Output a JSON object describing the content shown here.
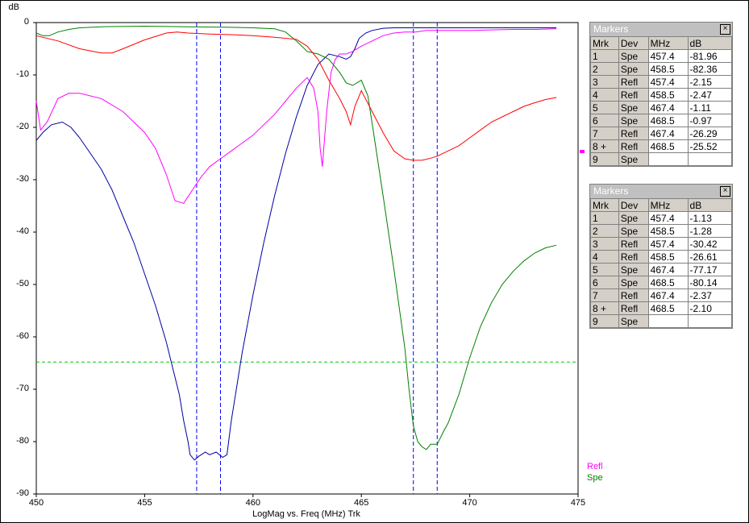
{
  "chart_data": {
    "type": "line",
    "ylabel": "dB",
    "xlabel": "LogMag vs. Freq (MHz)  Trk",
    "xlim": [
      450,
      475
    ],
    "ylim": [
      -90,
      0
    ],
    "xticks": [
      "450",
      "455",
      "460",
      "465",
      "470",
      "475"
    ],
    "yticks": [
      "0",
      "-10",
      "-20",
      "-30",
      "-40",
      "-50",
      "-60",
      "-70",
      "-80",
      "-90"
    ],
    "reference_line_db": -64.8,
    "marker_freqs": [
      457.4,
      458.5,
      467.4,
      468.5
    ],
    "legend": [
      {
        "name": "Refl",
        "color": "#ff00ff"
      },
      {
        "name": "Spe",
        "color": "#008000"
      }
    ],
    "series": [
      {
        "color": "#0000a0",
        "x": [
          450,
          450.3,
          450.7,
          451.2,
          451.6,
          452,
          452.5,
          453,
          453.5,
          454,
          454.5,
          455,
          455.5,
          456,
          456.3,
          456.6,
          456.8,
          457,
          457.1,
          457.3,
          457.5,
          457.8,
          458,
          458.3,
          458.6,
          458.8,
          459,
          459.5,
          460,
          460.5,
          461,
          461.5,
          462,
          462.5,
          463,
          463.5,
          464,
          464.3,
          464.5,
          464.7,
          464.9,
          465.2,
          465.5,
          466,
          466.5,
          467,
          467.5,
          468,
          469,
          470,
          471,
          472,
          473,
          474
        ],
        "y": [
          -22.5,
          -21,
          -19.5,
          -19,
          -20,
          -22,
          -25,
          -28,
          -32,
          -37,
          -42,
          -48,
          -54,
          -61,
          -66,
          -71,
          -76,
          -80,
          -82.5,
          -83.5,
          -82.8,
          -82,
          -82.5,
          -82,
          -83,
          -82.5,
          -76,
          -63,
          -52,
          -42,
          -33,
          -25,
          -18,
          -12,
          -8,
          -6,
          -6.5,
          -7,
          -6.5,
          -5,
          -3,
          -2,
          -1.5,
          -1.1,
          -1,
          -1,
          -1,
          -1,
          -1,
          -1,
          -1,
          -1,
          -1,
          -1
        ]
      },
      {
        "color": "#ff00ff",
        "x": [
          450,
          450.2,
          450.5,
          451,
          451.5,
          452,
          453,
          454,
          455,
          455.5,
          456,
          456.4,
          456.8,
          457.2,
          457.6,
          458,
          458.5,
          459,
          459.5,
          460,
          460.5,
          461,
          461.5,
          462,
          462.5,
          462.8,
          463,
          463.1,
          463.2,
          463.4,
          463.6,
          463.8,
          464,
          464.3,
          464.6,
          465,
          465.5,
          466,
          466.5,
          467,
          467.5,
          468,
          468.5,
          469,
          470,
          471,
          472,
          473,
          474
        ],
        "y": [
          -15,
          -20.5,
          -19,
          -14.5,
          -13.5,
          -13.5,
          -14.5,
          -17,
          -21,
          -24,
          -29,
          -34,
          -34.5,
          -32,
          -29.5,
          -27.5,
          -26,
          -24.5,
          -23,
          -21.5,
          -19.5,
          -17.5,
          -15,
          -12.5,
          -10.5,
          -12.5,
          -17,
          -24,
          -27.5,
          -17,
          -9.5,
          -7,
          -6,
          -6,
          -5.5,
          -4.5,
          -3.5,
          -2.5,
          -2,
          -1.8,
          -1.8,
          -1.5,
          -1.5,
          -1.5,
          -1.5,
          -1.4,
          -1.3,
          -1.3,
          -1.2
        ]
      },
      {
        "color": "#008000",
        "x": [
          450,
          450.3,
          450.6,
          451,
          451.5,
          452,
          453,
          455,
          457,
          459,
          460,
          461,
          461.5,
          462,
          462.5,
          463,
          463.5,
          464,
          464.3,
          464.6,
          464.8,
          465,
          465.3,
          465.6,
          466,
          466.5,
          467,
          467.2,
          467.4,
          467.6,
          467.8,
          468,
          468.2,
          468.5,
          468.8,
          469,
          469.5,
          470,
          470.5,
          471,
          471.5,
          472,
          472.5,
          473,
          473.5,
          474
        ],
        "y": [
          -2,
          -2.5,
          -2.5,
          -1.8,
          -1.3,
          -1,
          -0.8,
          -0.7,
          -0.8,
          -0.9,
          -1,
          -1.2,
          -1.8,
          -3.5,
          -5.5,
          -6,
          -7,
          -9.5,
          -11.5,
          -12,
          -11.5,
          -11,
          -14,
          -22,
          -33,
          -47,
          -62,
          -70,
          -77,
          -80,
          -81,
          -81.5,
          -80.5,
          -80.5,
          -78,
          -76.5,
          -71,
          -64,
          -58,
          -53.5,
          -50,
          -47.5,
          -45.5,
          -44,
          -43,
          -42.5
        ]
      },
      {
        "color": "#ff0000",
        "x": [
          450,
          451,
          452,
          453,
          453.5,
          454,
          455,
          456,
          456.5,
          457,
          458,
          459,
          460,
          461,
          462,
          462.5,
          463,
          463.5,
          464,
          464.3,
          464.5,
          464.7,
          465,
          465.5,
          466,
          466.5,
          467,
          467.4,
          467.8,
          468.2,
          468.5,
          469,
          469.5,
          470,
          470.5,
          471,
          471.5,
          472,
          472.5,
          473,
          473.5,
          474
        ],
        "y": [
          -2.5,
          -3.5,
          -5,
          -5.8,
          -5.8,
          -5,
          -3.3,
          -2,
          -1.8,
          -2,
          -2.2,
          -2.3,
          -2.5,
          -2.8,
          -3.2,
          -4.5,
          -7,
          -11,
          -14.5,
          -17,
          -19.5,
          -16,
          -13,
          -17,
          -21,
          -24.5,
          -26,
          -26.3,
          -26.3,
          -25.9,
          -25.5,
          -24.5,
          -23.5,
          -22,
          -20.5,
          -19,
          -18,
          -17,
          -16,
          -15.3,
          -14.7,
          -14.3
        ]
      }
    ]
  },
  "markers_top": {
    "title": "Markers",
    "close": "×",
    "headers": [
      "Mrk",
      "Dev",
      "MHz",
      "dB"
    ],
    "rows": [
      [
        "1",
        "Spe",
        "457.4",
        "-81.96"
      ],
      [
        "2",
        "Spe",
        "458.5",
        "-82.36"
      ],
      [
        "3",
        "Refl",
        "457.4",
        "-2.15"
      ],
      [
        "4",
        "Refl",
        "458.5",
        "-2.47"
      ],
      [
        "5",
        "Spe",
        "467.4",
        "-1.11"
      ],
      [
        "6",
        "Spe",
        "468.5",
        "-0.97"
      ],
      [
        "7",
        "Refl",
        "467.4",
        "-26.29"
      ],
      [
        "8 +",
        "Refl",
        "468.5",
        "-25.52"
      ],
      [
        "9",
        "Spe",
        "",
        ""
      ]
    ]
  },
  "markers_bottom": {
    "title": "Markers",
    "close": "×",
    "headers": [
      "Mrk",
      "Dev",
      "MHz",
      "dB"
    ],
    "rows": [
      [
        "1",
        "Spe",
        "457.4",
        "-1.13"
      ],
      [
        "2",
        "Spe",
        "458.5",
        "-1.28"
      ],
      [
        "3",
        "Refl",
        "457.4",
        "-30.42"
      ],
      [
        "4",
        "Refl",
        "458.5",
        "-26.61"
      ],
      [
        "5",
        "Spe",
        "467.4",
        "-77.17"
      ],
      [
        "6",
        "Spe",
        "468.5",
        "-80.14"
      ],
      [
        "7",
        "Refl",
        "467.4",
        "-2.37"
      ],
      [
        "8 +",
        "Refl",
        "468.5",
        "-2.10"
      ],
      [
        "9",
        "Spe",
        "",
        ""
      ]
    ]
  }
}
